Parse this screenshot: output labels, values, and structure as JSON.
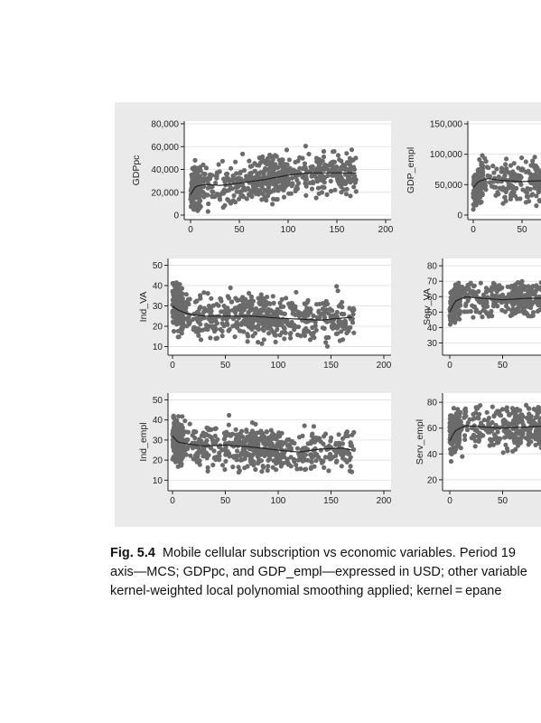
{
  "caption": {
    "label": "Fig. 5.4",
    "line1": "Mobile cellular subscription vs economic variables. Period 19",
    "line2": "axis—MCS; GDPpc, and GDP_empl—expressed in USD; other variable",
    "line3": "kernel-weighted local polynomial smoothing applied; kernel = epane"
  },
  "colors": {
    "figure_bg": "#eaeaea",
    "plot_bg": "#ffffff",
    "points": "#6b6b6b",
    "smooth_line": "#222222",
    "grid": "#e4e4e4"
  },
  "chart_data": [
    {
      "type": "scatter",
      "ylabel": "GDPpc",
      "xlim": [
        0,
        200
      ],
      "ylim": [
        0,
        80000
      ],
      "xticks": [
        "0",
        "50",
        "100",
        "150",
        "200"
      ],
      "yticks": [
        "0",
        "20,000",
        "40,000",
        "60,000",
        "80,000"
      ],
      "grid": true,
      "n_points": 700,
      "x_max_observed": 170,
      "y_observed_range": [
        3000,
        68000
      ],
      "smooth": {
        "x": [
          0,
          5,
          15,
          30,
          50,
          75,
          100,
          120,
          140,
          160,
          170
        ],
        "y": [
          18000,
          25000,
          27000,
          26000,
          28000,
          31000,
          35000,
          37000,
          37000,
          37000,
          37000
        ]
      }
    },
    {
      "type": "scatter",
      "ylabel": "GDP_empl",
      "xlim": [
        0,
        200
      ],
      "ylim": [
        0,
        150000
      ],
      "xticks": [
        "0",
        "50"
      ],
      "yticks": [
        "0",
        "50,000",
        "100,000",
        "150,000"
      ],
      "grid": true,
      "n_points": 700,
      "x_max_observed": 170,
      "y_observed_range": [
        3000,
        118000
      ],
      "smooth": {
        "x": [
          0,
          5,
          15,
          30,
          50,
          75,
          100,
          120,
          140,
          160,
          170
        ],
        "y": [
          45000,
          55000,
          60000,
          57000,
          55000,
          57000,
          60000,
          62000,
          62000,
          62000,
          62000
        ]
      }
    },
    {
      "type": "scatter",
      "ylabel": "Ind_VA",
      "xlim": [
        0,
        200
      ],
      "ylim": [
        8,
        52
      ],
      "xticks": [
        "0",
        "50",
        "100",
        "150",
        "200"
      ],
      "yticks": [
        "10",
        "20",
        "30",
        "40",
        "50"
      ],
      "grid": true,
      "n_points": 700,
      "x_max_observed": 172,
      "y_observed_range": [
        10,
        50
      ],
      "smooth": {
        "x": [
          0,
          5,
          15,
          30,
          50,
          75,
          100,
          120,
          140,
          160,
          170
        ],
        "y": [
          30,
          28,
          26,
          25,
          25,
          25,
          24,
          23.5,
          23,
          24,
          24.5
        ]
      }
    },
    {
      "type": "scatter",
      "ylabel": "Serv_VA",
      "xlim": [
        0,
        200
      ],
      "ylim": [
        25,
        83
      ],
      "xticks": [
        "0",
        "50"
      ],
      "yticks": [
        "30",
        "40",
        "50",
        "60",
        "70",
        "80"
      ],
      "grid": true,
      "n_points": 700,
      "x_max_observed": 172,
      "y_observed_range": [
        30,
        70
      ],
      "smooth": {
        "x": [
          0,
          5,
          15,
          30,
          50,
          75,
          100,
          120,
          140,
          160,
          170
        ],
        "y": [
          50,
          57,
          60,
          59,
          58,
          59,
          59,
          60,
          60,
          60,
          60
        ]
      }
    },
    {
      "type": "scatter",
      "ylabel": "Ind_empl",
      "xlim": [
        0,
        200
      ],
      "ylim": [
        7,
        52
      ],
      "xticks": [
        "0",
        "50",
        "100",
        "150",
        "200"
      ],
      "yticks": [
        "10",
        "20",
        "30",
        "40",
        "50"
      ],
      "grid": true,
      "n_points": 700,
      "x_max_observed": 172,
      "y_observed_range": [
        13,
        50
      ],
      "smooth": {
        "x": [
          0,
          5,
          15,
          30,
          50,
          75,
          100,
          120,
          140,
          160,
          170
        ],
        "y": [
          32,
          29,
          28,
          27,
          27.5,
          26.5,
          25,
          24,
          25.5,
          26,
          25
        ]
      }
    },
    {
      "type": "scatter",
      "ylabel": "Serv_empl",
      "xlim": [
        0,
        200
      ],
      "ylim": [
        15,
        85
      ],
      "xticks": [
        "0",
        "50"
      ],
      "yticks": [
        "20",
        "40",
        "60",
        "80"
      ],
      "grid": true,
      "n_points": 700,
      "x_max_observed": 172,
      "y_observed_range": [
        18,
        78
      ],
      "smooth": {
        "x": [
          0,
          5,
          15,
          30,
          50,
          75,
          100,
          120,
          140,
          160,
          170
        ],
        "y": [
          50,
          58,
          62,
          61,
          60,
          61,
          62,
          63,
          63,
          63,
          63
        ]
      }
    }
  ]
}
